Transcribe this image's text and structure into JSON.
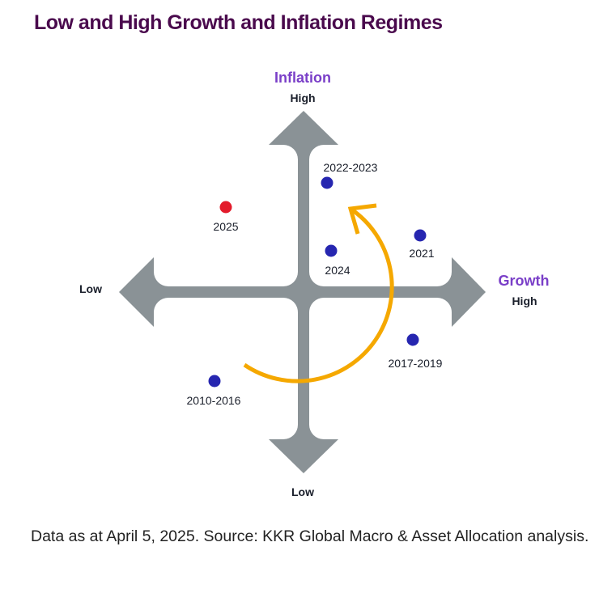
{
  "title": "Low and High Growth and Inflation Regimes",
  "axes": {
    "vertical": {
      "title": "Inflation",
      "high": "High",
      "low": "Low"
    },
    "horizontal": {
      "title": "Growth",
      "high": "High",
      "low": "Low"
    }
  },
  "points": [
    {
      "label": "2022-2023",
      "quadrant": "high-growth-high-inflation",
      "color": "#2626b0"
    },
    {
      "label": "2025",
      "quadrant": "low-growth-high-inflation",
      "color": "#e31b2b"
    },
    {
      "label": "2024",
      "quadrant": "high-growth-high-inflation",
      "color": "#2626b0"
    },
    {
      "label": "2021",
      "quadrant": "high-growth-high-inflation",
      "color": "#2626b0"
    },
    {
      "label": "2017-2019",
      "quadrant": "high-growth-low-inflation",
      "color": "#2626b0"
    },
    {
      "label": "2010-2016",
      "quadrant": "low-growth-low-inflation",
      "color": "#2626b0"
    }
  ],
  "colors": {
    "cross": "#8a9296",
    "cycle_arrow": "#f5a800",
    "title": "#4a0a4d",
    "axis_title": "#7a3fc8"
  },
  "footer": "Data as at April 5, 2025. Source: KKR Global Macro & Asset Allocation analysis."
}
